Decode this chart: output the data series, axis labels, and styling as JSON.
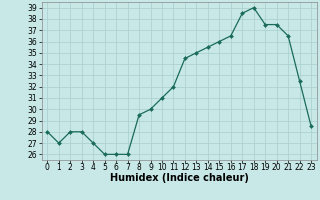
{
  "x": [
    0,
    1,
    2,
    3,
    4,
    5,
    6,
    7,
    8,
    9,
    10,
    11,
    12,
    13,
    14,
    15,
    16,
    17,
    18,
    19,
    20,
    21,
    22,
    23
  ],
  "y": [
    28,
    27,
    28,
    28,
    27,
    26,
    26,
    26,
    29.5,
    30,
    31,
    32,
    34.5,
    35,
    35.5,
    36,
    36.5,
    38.5,
    39,
    37.5,
    37.5,
    36.5,
    32.5,
    28.5
  ],
  "xlabel": "Humidex (Indice chaleur)",
  "ylim_min": 25.5,
  "ylim_max": 39.5,
  "xlim_min": -0.5,
  "xlim_max": 23.5,
  "yticks": [
    26,
    27,
    28,
    29,
    30,
    31,
    32,
    33,
    34,
    35,
    36,
    37,
    38,
    39
  ],
  "xticks": [
    0,
    1,
    2,
    3,
    4,
    5,
    6,
    7,
    8,
    9,
    10,
    11,
    12,
    13,
    14,
    15,
    16,
    17,
    18,
    19,
    20,
    21,
    22,
    23
  ],
  "line_color": "#1a6b5a",
  "bg_color": "#c8e8e8",
  "grid_color": "#a8cece",
  "tick_fontsize": 5.5,
  "xlabel_fontsize": 7,
  "xlabel_bold": true
}
